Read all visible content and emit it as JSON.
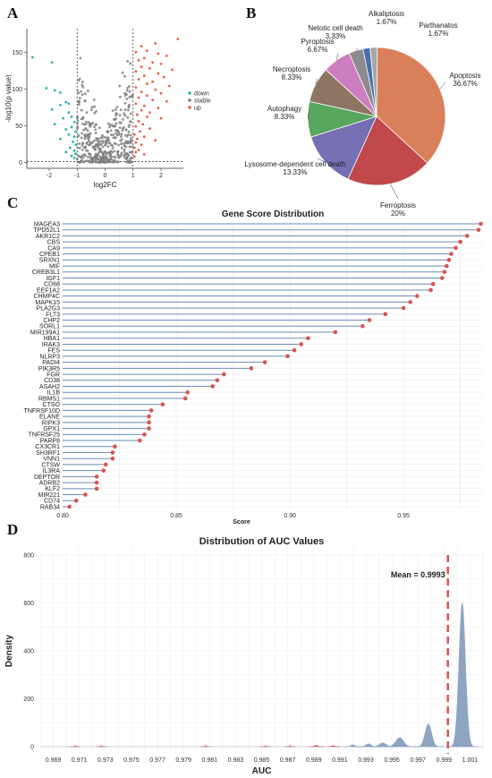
{
  "panels": {
    "a": "A",
    "b": "B",
    "c": "C",
    "d": "D"
  },
  "chart_data": [
    {
      "type": "scatter",
      "panel": "A",
      "xlabel": "log2FC",
      "ylabel": "-log10(p value)",
      "xlim": [
        -2.8,
        2.8
      ],
      "ylim": [
        -8,
        182
      ],
      "xticks": [
        -2,
        -1,
        0,
        1,
        2
      ],
      "yticks": [
        0,
        50,
        100,
        150
      ],
      "thresholds": {
        "x": [
          -1,
          1
        ],
        "y": 1.3
      },
      "legend_position": "right",
      "legend": [
        {
          "name": "down",
          "color": "#27b5b0"
        },
        {
          "name": "stable",
          "color": "#7f7f7f"
        },
        {
          "name": "up",
          "color": "#e8604c"
        }
      ],
      "series": [
        {
          "name": "down",
          "points": [
            [
              -2.6,
              143
            ],
            [
              -1.9,
              136
            ],
            [
              -2.1,
              101
            ],
            [
              -1.8,
              98
            ],
            [
              -1.6,
              95
            ],
            [
              -1.4,
              82
            ],
            [
              -1.3,
              80
            ],
            [
              -1.6,
              78
            ],
            [
              -1.9,
              72
            ],
            [
              -1.3,
              68
            ],
            [
              -1.2,
              62
            ],
            [
              -1.5,
              60
            ],
            [
              -1.1,
              55
            ],
            [
              -1.8,
              52
            ],
            [
              -1.2,
              48
            ],
            [
              -1.4,
              45
            ],
            [
              -1.05,
              42
            ],
            [
              -1.3,
              38
            ],
            [
              -1.1,
              35
            ],
            [
              -1.6,
              32
            ],
            [
              -1.15,
              28
            ],
            [
              -1.05,
              24
            ],
            [
              -1.25,
              20
            ],
            [
              -1.1,
              16
            ],
            [
              -1.4,
              14
            ],
            [
              -1.05,
              12
            ],
            [
              -1.2,
              9
            ],
            [
              -1.1,
              6
            ]
          ]
        },
        {
          "name": "up",
          "points": [
            [
              2.6,
              168
            ],
            [
              1.8,
              162
            ],
            [
              1.3,
              158
            ],
            [
              1.5,
              152
            ],
            [
              1.1,
              150
            ],
            [
              1.9,
              148
            ],
            [
              2.2,
              145
            ],
            [
              1.4,
              142
            ],
            [
              1.2,
              139
            ],
            [
              1.7,
              136
            ],
            [
              2.0,
              134
            ],
            [
              1.3,
              130
            ],
            [
              1.6,
              128
            ],
            [
              2.4,
              126
            ],
            [
              1.1,
              124
            ],
            [
              1.9,
              121
            ],
            [
              1.4,
              118
            ],
            [
              2.1,
              116
            ],
            [
              1.2,
              113
            ],
            [
              1.7,
              110
            ],
            [
              1.5,
              107
            ],
            [
              2.3,
              104
            ],
            [
              1.1,
              102
            ],
            [
              1.8,
              99
            ],
            [
              1.3,
              96
            ],
            [
              2.0,
              94
            ],
            [
              1.5,
              91
            ],
            [
              1.2,
              88
            ],
            [
              1.7,
              85
            ],
            [
              2.2,
              83
            ],
            [
              1.1,
              80
            ],
            [
              1.4,
              77
            ],
            [
              1.9,
              74
            ],
            [
              1.3,
              71
            ],
            [
              1.6,
              68
            ],
            [
              1.15,
              65
            ],
            [
              1.5,
              62
            ],
            [
              2.0,
              60
            ],
            [
              1.2,
              56
            ],
            [
              1.35,
              52
            ],
            [
              1.1,
              49
            ],
            [
              1.6,
              46
            ],
            [
              1.25,
              42
            ],
            [
              1.05,
              38
            ],
            [
              1.4,
              35
            ],
            [
              1.15,
              32
            ],
            [
              1.8,
              30
            ],
            [
              1.1,
              27
            ],
            [
              1.3,
              24
            ],
            [
              1.05,
              20
            ],
            [
              1.2,
              17
            ],
            [
              1.1,
              14
            ],
            [
              1.4,
              11
            ],
            [
              1.05,
              8
            ]
          ]
        }
      ]
    },
    {
      "type": "pie",
      "panel": "B",
      "slices": [
        {
          "label": "Apoptosis",
          "pct_label": "36.67%",
          "value": 36.67,
          "color": "#d9805a"
        },
        {
          "label": "Ferroptosis",
          "pct_label": "20%",
          "value": 20,
          "color": "#c1484b"
        },
        {
          "label": "Lysosome-dependent cell death",
          "pct_label": "13.33%",
          "value": 13.33,
          "color": "#7570b3"
        },
        {
          "label": "Autophagy",
          "pct_label": "8.33%",
          "value": 8.33,
          "color": "#57a65d"
        },
        {
          "label": "Necroptosis",
          "pct_label": "8.33%",
          "value": 8.33,
          "color": "#8e7563"
        },
        {
          "label": "Pyroptosis",
          "pct_label": "6.67%",
          "value": 6.67,
          "color": "#cc7ec1"
        },
        {
          "label": "Netotic cell death",
          "pct_label": "3.33%",
          "value": 3.33,
          "color": "#8c8c8c"
        },
        {
          "label": "Alkaliptosis",
          "pct_label": "1.67%",
          "value": 1.67,
          "color": "#4a6fb0"
        },
        {
          "label": "Parthanatos",
          "pct_label": "1.67%",
          "value": 1.67,
          "color": "#a6a6a6"
        }
      ]
    },
    {
      "type": "bar",
      "panel": "C",
      "title": "Gene Score Distribution",
      "xlabel": "Score",
      "xlim": [
        0.8,
        0.985
      ],
      "xticks": [
        0.8,
        0.85,
        0.9,
        0.95
      ],
      "xtick_labels": [
        "0.80",
        "0.85",
        "0.90",
        "0.95"
      ],
      "categories": [
        "MAGEA3",
        "TPD52L1",
        "AKR1C2",
        "CBS",
        "CA9",
        "CPEB1",
        "SRXN1",
        "MIF",
        "CREB3L1",
        "IGF1",
        "CD68",
        "EEF1A2",
        "CHMP4C",
        "MAPK15",
        "PLA2G3",
        "FLT3",
        "CHP2",
        "SORL1",
        "MIR199A1",
        "HBA1",
        "IRAK3",
        "FES",
        "NLRP3",
        "PADI4",
        "PIK3R5",
        "FGR",
        "CD38",
        "ASAH2",
        "IL1B",
        "RBMS1",
        "CTSO",
        "TNFRSF10D",
        "ELANE",
        "RIPK3",
        "GPX1",
        "TNFRSF25",
        "PARP8",
        "CX3CR1",
        "SH3RF1",
        "VNN1",
        "CTSW",
        "IL3RA",
        "DEPTOR",
        "ADRB2",
        "KLF2",
        "MIR221",
        "CD74",
        "RAB34"
      ],
      "values": [
        0.984,
        0.983,
        0.978,
        0.975,
        0.973,
        0.971,
        0.97,
        0.969,
        0.968,
        0.967,
        0.963,
        0.962,
        0.956,
        0.953,
        0.95,
        0.942,
        0.935,
        0.932,
        0.92,
        0.908,
        0.905,
        0.902,
        0.899,
        0.889,
        0.883,
        0.871,
        0.868,
        0.866,
        0.855,
        0.854,
        0.844,
        0.839,
        0.838,
        0.838,
        0.838,
        0.836,
        0.834,
        0.823,
        0.822,
        0.822,
        0.819,
        0.818,
        0.815,
        0.815,
        0.815,
        0.81,
        0.806,
        0.803
      ]
    },
    {
      "type": "area",
      "panel": "D",
      "title": "Distribution of AUC Values",
      "xlabel": "AUC",
      "ylabel": "Density",
      "xlim": [
        0.968,
        1.002
      ],
      "ylim": [
        -30,
        830
      ],
      "xticks": [
        0.969,
        0.971,
        0.973,
        0.975,
        0.977,
        0.979,
        0.981,
        0.983,
        0.985,
        0.987,
        0.989,
        0.991,
        0.993,
        0.995,
        0.997,
        0.999,
        1.001
      ],
      "xtick_labels": [
        "0.969",
        "0.971",
        "0.973",
        "0.975",
        "0.977",
        "0.979",
        "0.981",
        "0.983",
        "0.985",
        "0.987",
        "0.989",
        "0.991",
        "0.993",
        "0.995",
        "0.997",
        "0.999",
        "1.001"
      ],
      "yticks": [
        0,
        200,
        400,
        600,
        800
      ],
      "mean_label": "Mean = 0.9993",
      "mean_value": 0.9993,
      "peaks": [
        {
          "center": 0.9707,
          "height": 4,
          "width": 8e-05,
          "color": "#c0504d"
        },
        {
          "center": 0.9727,
          "height": 4,
          "width": 8e-05,
          "color": "#c0504d"
        },
        {
          "center": 0.9807,
          "height": 4,
          "width": 8e-05,
          "color": "#c0504d"
        },
        {
          "center": 0.9853,
          "height": 4,
          "width": 8e-05,
          "color": "#c0504d"
        },
        {
          "center": 0.9872,
          "height": 4,
          "width": 8e-05,
          "color": "#c0504d"
        },
        {
          "center": 0.9892,
          "height": 6,
          "width": 0.00012,
          "color": "#c0504d"
        },
        {
          "center": 0.9905,
          "height": 5,
          "width": 0.0001,
          "color": "#c0504d"
        },
        {
          "center": 0.992,
          "height": 8,
          "width": 0.00015,
          "color": "#7a96b8"
        },
        {
          "center": 0.9932,
          "height": 12,
          "width": 0.0002,
          "color": "#7a96b8"
        },
        {
          "center": 0.9943,
          "height": 16,
          "width": 0.00025,
          "color": "#7a96b8"
        },
        {
          "center": 0.9956,
          "height": 38,
          "width": 0.0003,
          "color": "#7a96b8"
        },
        {
          "center": 0.9978,
          "height": 95,
          "width": 0.00025,
          "color": "#7a96b8"
        },
        {
          "center": 1.0004,
          "height": 600,
          "width": 0.00025,
          "color": "#7a96b8"
        }
      ]
    }
  ]
}
